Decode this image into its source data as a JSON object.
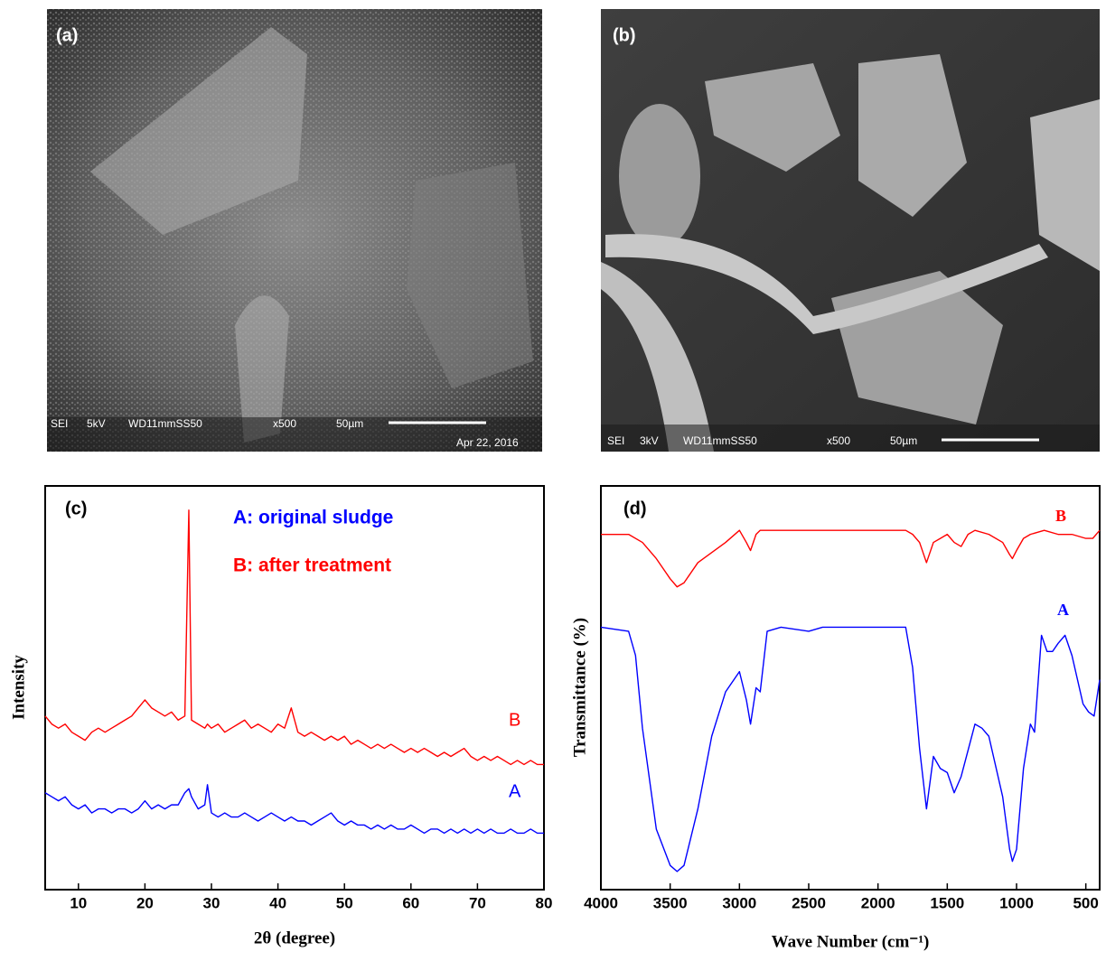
{
  "images": [
    {
      "label": "(a)",
      "info": [
        "SEI",
        "5kV",
        "WD11mmSS50",
        "x500",
        "50µm",
        "Apr 22, 2016"
      ]
    },
    {
      "label": "(b)",
      "info": [
        "SEI",
        "3kV",
        "WD11mmSS50",
        "x500",
        "50µm"
      ]
    }
  ],
  "chart_data": [
    {
      "type": "line",
      "panel_label": "(c)",
      "x_label": "2θ (degree)",
      "y_label": "Intensity",
      "xlim": [
        5,
        80
      ],
      "ylim": [
        0,
        100
      ],
      "xticks": [
        10,
        20,
        30,
        40,
        50,
        60,
        70,
        80
      ],
      "x": [
        5,
        6,
        7,
        8,
        9,
        10,
        11,
        12,
        13,
        14,
        15,
        16,
        17,
        18,
        19,
        20,
        21,
        22,
        23,
        24,
        25,
        26,
        26.6,
        27,
        28,
        29,
        29.4,
        30,
        31,
        32,
        33,
        34,
        35,
        36,
        37,
        38,
        39,
        40,
        41,
        42,
        43,
        44,
        45,
        46,
        47,
        48,
        49,
        50,
        51,
        52,
        53,
        54,
        55,
        56,
        57,
        58,
        59,
        60,
        61,
        62,
        63,
        64,
        65,
        66,
        67,
        68,
        69,
        70,
        71,
        72,
        73,
        74,
        75,
        76,
        77,
        78,
        79,
        80
      ],
      "series": [
        {
          "name": "A: original sludge",
          "label": "A",
          "color": "#0000ff",
          "values": [
            24,
            23,
            22,
            23,
            21,
            20,
            21,
            19,
            20,
            20,
            19,
            20,
            20,
            19,
            20,
            22,
            20,
            21,
            20,
            21,
            21,
            24,
            25,
            23,
            20,
            21,
            26,
            19,
            18,
            19,
            18,
            18,
            19,
            18,
            17,
            18,
            19,
            18,
            17,
            18,
            17,
            17,
            16,
            17,
            18,
            19,
            17,
            16,
            17,
            16,
            16,
            15,
            16,
            15,
            16,
            15,
            15,
            16,
            15,
            14,
            15,
            15,
            14,
            15,
            14,
            15,
            14,
            15,
            14,
            15,
            14,
            14,
            15,
            14,
            14,
            15,
            14,
            14
          ]
        },
        {
          "name": "B: after treatment",
          "label": "B",
          "color": "#ff0000",
          "values": [
            43,
            41,
            40,
            41,
            39,
            38,
            37,
            39,
            40,
            39,
            40,
            41,
            42,
            43,
            45,
            47,
            45,
            44,
            43,
            44,
            42,
            43,
            94,
            42,
            41,
            40,
            41,
            40,
            41,
            39,
            40,
            41,
            42,
            40,
            41,
            40,
            39,
            41,
            40,
            45,
            39,
            38,
            39,
            38,
            37,
            38,
            37,
            38,
            36,
            37,
            36,
            35,
            36,
            35,
            36,
            35,
            34,
            35,
            34,
            35,
            34,
            33,
            34,
            33,
            34,
            35,
            33,
            32,
            33,
            32,
            33,
            32,
            31,
            32,
            31,
            32,
            31,
            31
          ]
        }
      ]
    },
    {
      "type": "line",
      "panel_label": "(d)",
      "x_label": "Wave Number (cm⁻¹)",
      "y_label": "Transmittance (%)",
      "xlim": [
        4000,
        400
      ],
      "ylim": [
        0,
        100
      ],
      "xticks": [
        4000,
        3500,
        3000,
        2500,
        2000,
        1500,
        1000,
        500
      ],
      "series": [
        {
          "label": "A",
          "color": "#0000ff",
          "x": [
            4000,
            3800,
            3750,
            3700,
            3600,
            3500,
            3450,
            3400,
            3300,
            3200,
            3100,
            3000,
            2950,
            2920,
            2880,
            2850,
            2800,
            2700,
            2500,
            2400,
            2000,
            1800,
            1750,
            1700,
            1650,
            1600,
            1550,
            1500,
            1450,
            1400,
            1300,
            1250,
            1200,
            1100,
            1050,
            1030,
            1000,
            950,
            900,
            870,
            820,
            780,
            740,
            700,
            650,
            600,
            520,
            480,
            440,
            400
          ],
          "values": [
            65,
            64,
            58,
            40,
            15,
            6,
            4.5,
            6,
            20,
            38,
            49,
            54,
            47,
            41,
            50,
            49,
            64,
            65,
            64,
            65,
            65,
            65,
            55,
            35,
            20,
            33,
            30,
            29,
            24,
            28,
            41,
            40,
            38,
            23,
            10,
            7,
            10,
            30,
            41,
            39,
            63,
            59,
            59,
            61,
            63,
            58,
            46,
            44,
            43,
            52
          ]
        },
        {
          "label": "B",
          "color": "#ff0000",
          "x": [
            4000,
            3800,
            3700,
            3600,
            3500,
            3450,
            3400,
            3300,
            3100,
            3000,
            2950,
            2920,
            2880,
            2850,
            2800,
            2500,
            2000,
            1800,
            1750,
            1700,
            1650,
            1600,
            1550,
            1500,
            1450,
            1400,
            1350,
            1300,
            1200,
            1100,
            1050,
            1030,
            1000,
            950,
            900,
            800,
            700,
            600,
            500,
            450,
            400
          ],
          "values": [
            88,
            88,
            86,
            82,
            77,
            75,
            76,
            81,
            86,
            89,
            86,
            84,
            88,
            89,
            89,
            89,
            89,
            89,
            88,
            86,
            81,
            86,
            87,
            88,
            86,
            85,
            88,
            89,
            88,
            86,
            83,
            82,
            84,
            87,
            88,
            89,
            88,
            88,
            87,
            87,
            89
          ]
        }
      ]
    }
  ]
}
